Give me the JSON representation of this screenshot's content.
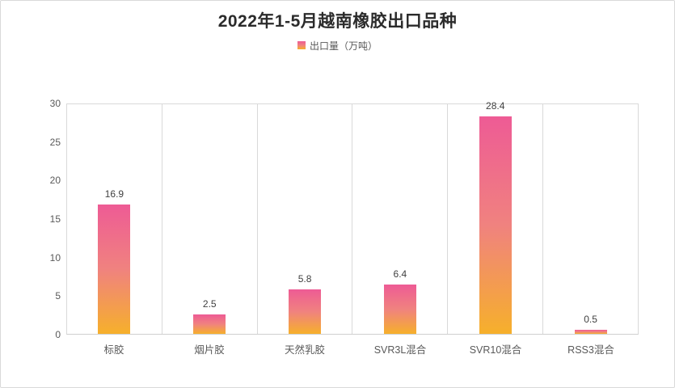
{
  "chart_data": {
    "type": "bar",
    "title": "2022年1-5月越南橡胶出口品种",
    "legend": [
      "出口量（万吨）"
    ],
    "legend_position": "top-center",
    "categories": [
      "标胶",
      "烟片胶",
      "天然乳胶",
      "SVR3L混合",
      "SVR10混合",
      "RSS3混合"
    ],
    "values": [
      16.9,
      2.5,
      5.8,
      6.4,
      28.4,
      0.5
    ],
    "value_labels": [
      "16.9",
      "2.5",
      "5.8",
      "6.4",
      "28.4",
      "0.5"
    ],
    "xlabel": "",
    "ylabel": "",
    "ylim": [
      0,
      30
    ],
    "ytick_step": 5,
    "yticks": [
      0,
      5,
      10,
      15,
      20,
      25,
      30
    ],
    "grid": "vertical-category-gridlines-only",
    "plot_border": true
  },
  "colors": {
    "bar_gradient_top": "#ee5b95",
    "bar_gradient_mid": "#f0827f",
    "bar_gradient_bottom": "#f6b02b",
    "gridline": "#d9d9d9",
    "canvas_border": "#d9d9d9",
    "axis_text": "#595959",
    "value_label_text": "#3f3f3f",
    "title_text": "#2b2b2b"
  }
}
